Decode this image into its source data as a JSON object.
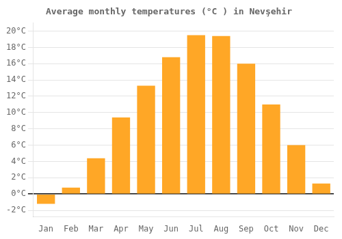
{
  "chart_data": {
    "type": "bar",
    "title": "Average monthly temperatures (°C ) in Nevşehir",
    "categories": [
      "Jan",
      "Feb",
      "Mar",
      "Apr",
      "May",
      "Jun",
      "Jul",
      "Aug",
      "Sep",
      "Oct",
      "Nov",
      "Dec"
    ],
    "values": [
      -1.2,
      0.8,
      4.4,
      9.4,
      13.3,
      16.8,
      19.5,
      19.4,
      16.0,
      11.0,
      6.0,
      1.3
    ],
    "color": "#FFA726",
    "ylim": [
      -2.8,
      21.0
    ],
    "yticks": [
      {
        "value": -2,
        "label": "-2°C"
      },
      {
        "value": 0,
        "label": "0°C"
      },
      {
        "value": 2,
        "label": "2°C"
      },
      {
        "value": 4,
        "label": "4°C"
      },
      {
        "value": 6,
        "label": "6°C"
      },
      {
        "value": 8,
        "label": "8°C"
      },
      {
        "value": 10,
        "label": "10°C"
      },
      {
        "value": 12,
        "label": "12°C"
      },
      {
        "value": 14,
        "label": "14°C"
      },
      {
        "value": 16,
        "label": "16°C"
      },
      {
        "value": 18,
        "label": "18°C"
      },
      {
        "value": 20,
        "label": "20°C"
      }
    ],
    "grid": true
  }
}
